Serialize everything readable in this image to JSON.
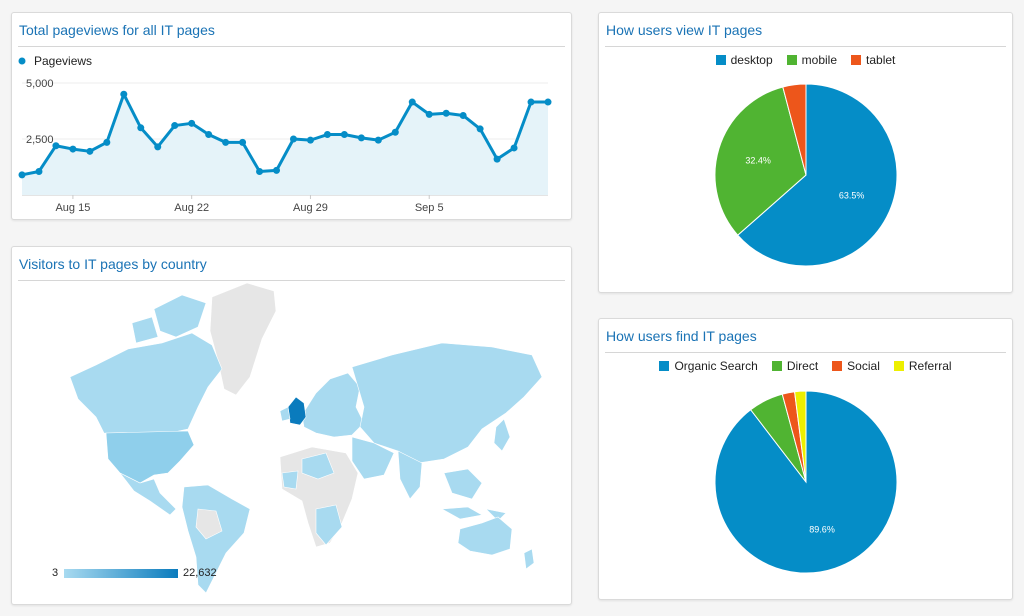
{
  "panels": {
    "pageviews_title": "Total pageviews for all IT pages",
    "country_title": "Visitors to IT pages by country",
    "device_title": "How users view IT pages",
    "channel_title": "How users find IT pages"
  },
  "map": {
    "scale_min": "3",
    "scale_max": "22,632",
    "light_color": "#a8daf0",
    "dark_color": "#0a7bbd",
    "no_data_color": "#e6e6e6"
  },
  "colors": {
    "blue": "#058dc7",
    "green": "#50b432",
    "orange": "#ed561b",
    "yellow": "#edef00",
    "area_fill": "#e5f3f9"
  },
  "chart_data": [
    {
      "type": "area",
      "legend": [
        "Pageviews"
      ],
      "x_ticks": [
        "Aug 15",
        "Aug 22",
        "Aug 29",
        "Sep 5"
      ],
      "y_ticks": [
        "5,000",
        "2,500"
      ],
      "ylim": [
        0,
        5000
      ],
      "series": [
        {
          "name": "Pageviews",
          "x": [
            "Aug 12",
            "Aug 13",
            "Aug 14",
            "Aug 15",
            "Aug 16",
            "Aug 17",
            "Aug 18",
            "Aug 19",
            "Aug 20",
            "Aug 21",
            "Aug 22",
            "Aug 23",
            "Aug 24",
            "Aug 25",
            "Aug 26",
            "Aug 27",
            "Aug 28",
            "Aug 29",
            "Aug 30",
            "Aug 31",
            "Sep 1",
            "Sep 2",
            "Sep 3",
            "Sep 4",
            "Sep 5",
            "Sep 6",
            "Sep 7",
            "Sep 8",
            "Sep 9",
            "Sep 10",
            "Sep 11",
            "Sep 12"
          ],
          "values": [
            900,
            1050,
            2200,
            2050,
            1950,
            2350,
            4500,
            3000,
            2150,
            3100,
            3200,
            2700,
            2350,
            2350,
            1050,
            1100,
            2500,
            2450,
            2700,
            2700,
            2550,
            2450,
            2800,
            4150,
            3600,
            3650,
            3550,
            2950,
            1600,
            2100,
            4150,
            4150
          ]
        }
      ],
      "grid": true
    },
    {
      "type": "pie",
      "legend_position": "top",
      "slices": [
        {
          "name": "desktop",
          "value": 63.5,
          "label": "63.5%"
        },
        {
          "name": "mobile",
          "value": 32.4,
          "label": "32.4%"
        },
        {
          "name": "tablet",
          "value": 4.1,
          "label": ""
        }
      ]
    },
    {
      "type": "pie",
      "legend_position": "top",
      "slices": [
        {
          "name": "Organic Search",
          "value": 89.6,
          "label": "89.6%"
        },
        {
          "name": "Direct",
          "value": 6.2,
          "label": ""
        },
        {
          "name": "Social",
          "value": 2.2,
          "label": ""
        },
        {
          "name": "Referral",
          "value": 2.0,
          "label": ""
        }
      ]
    }
  ]
}
